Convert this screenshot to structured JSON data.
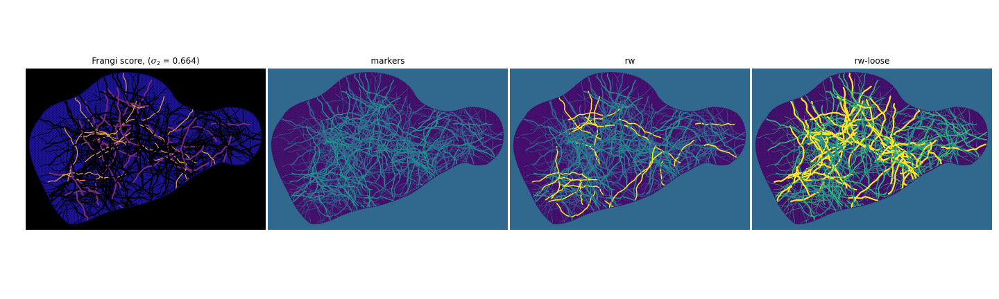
{
  "panels": [
    {
      "title_prefix": "Frangi score, (",
      "title_symbol": "σ",
      "title_subscript": "2",
      "title_suffix": " = 0.664)",
      "background_color": "#000000",
      "tissue_color": "#1b148c",
      "vessel_colors": [
        "#000000",
        "#7a2b7e",
        "#e8a33a"
      ]
    },
    {
      "title": "markers",
      "background_color": "#31688e",
      "tissue_color": "#45106e",
      "vessel_colors": [
        "#21918c",
        "#31688e"
      ]
    },
    {
      "title": "rw",
      "background_color": "#31688e",
      "tissue_color": "#45106e",
      "vessel_colors": [
        "#21918c",
        "#31688e",
        "#fde725"
      ]
    },
    {
      "title": "rw-loose",
      "background_color": "#31688e",
      "tissue_color": "#45106e",
      "vessel_colors": [
        "#fde725",
        "#21918c",
        "#35b779"
      ]
    }
  ]
}
